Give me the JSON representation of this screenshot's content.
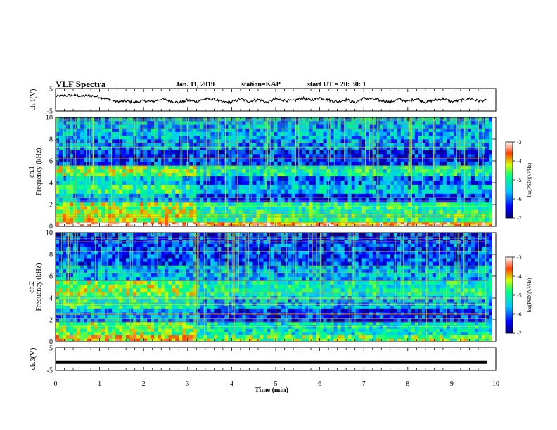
{
  "header": {
    "title": "VLF Spectra",
    "date": "Jan. 11, 2019",
    "station": "station=KAP",
    "start_ut": "start  UT =   20: 30: 1"
  },
  "chart_data": [
    {
      "type": "line",
      "panel": "ch1-waveform",
      "ylabel": "ch.1(V)",
      "ylim": [
        -5,
        5
      ],
      "yticks": [
        "5",
        "-5"
      ],
      "xlim": [
        0,
        10
      ],
      "color": "#000000",
      "note_values": "approximate trace amplitude sampled every ~0.2 min",
      "x": [
        0,
        0.2,
        0.4,
        0.6,
        0.8,
        1.0,
        1.2,
        1.4,
        1.6,
        1.8,
        2.0,
        2.2,
        2.4,
        2.6,
        2.8,
        3.0,
        3.2,
        3.4,
        3.6,
        3.8,
        4.0,
        4.2,
        4.4,
        4.6,
        4.8,
        5.0,
        5.2,
        5.4,
        5.6,
        5.8,
        6.0,
        6.2,
        6.4,
        6.6,
        6.8,
        7.0,
        7.2,
        7.4,
        7.6,
        7.8,
        8.0,
        8.2,
        8.4,
        8.6,
        8.8,
        9.0,
        9.2,
        9.4,
        9.6,
        9.8
      ],
      "y": [
        1.5,
        1.8,
        2.0,
        1.6,
        1.9,
        1.2,
        0.2,
        -0.8,
        -0.6,
        -1.2,
        -0.5,
        -0.9,
        0.3,
        -0.4,
        -1.3,
        -0.2,
        -0.9,
        0.4,
        0.2,
        -1.1,
        -1.0,
        0.3,
        -0.8,
        0.1,
        -1.2,
        0.4,
        -0.3,
        -0.5,
        0.7,
        -0.2,
        0.9,
        -0.1,
        -0.9,
        0.0,
        -1.2,
        0.6,
        0.3,
        -0.4,
        -1.0,
        0.2,
        -0.7,
        0.5,
        -1.1,
        -0.2,
        0.4,
        -0.9,
        -0.3,
        0.6,
        -0.5,
        -0.2
      ]
    },
    {
      "type": "heatmap",
      "panel": "ch1-spectrogram",
      "ylabel": "ch.1\nFrequency (kHz)",
      "ylabel_line1": "ch.1",
      "ylabel_line2": "Frequency (kHz)",
      "ylim": [
        0,
        10
      ],
      "yticks": [
        "0",
        "2",
        "4",
        "6",
        "8",
        "10"
      ],
      "xlim": [
        0,
        10
      ],
      "colorbar": {
        "label": "log(PSD)(V²/Hz)",
        "range": [
          -7,
          -3
        ],
        "ticks": [
          "-3",
          "-4",
          "-5",
          "-6",
          "-7"
        ]
      },
      "bands": [
        {
          "f0": 0.0,
          "f1": 0.4,
          "level": -3.6
        },
        {
          "f0": 0.4,
          "f1": 1.2,
          "level": -4.9
        },
        {
          "f0": 1.2,
          "f1": 2.2,
          "level": -5.0
        },
        {
          "f0": 2.2,
          "f1": 3.0,
          "level": -6.2
        },
        {
          "f0": 3.0,
          "f1": 3.8,
          "level": -5.5
        },
        {
          "f0": 3.8,
          "f1": 4.6,
          "level": -6.0
        },
        {
          "f0": 4.6,
          "f1": 5.6,
          "level": -5.1
        },
        {
          "f0": 5.6,
          "f1": 7.0,
          "level": -6.3
        },
        {
          "f0": 7.0,
          "f1": 8.0,
          "level": -5.8
        },
        {
          "f0": 8.0,
          "f1": 10.0,
          "level": -5.6
        }
      ]
    },
    {
      "type": "heatmap",
      "panel": "ch2-spectrogram",
      "ylabel_line1": "ch.2",
      "ylabel_line2": "Frequency (kHz)",
      "ylim": [
        0,
        10
      ],
      "yticks": [
        "0",
        "2",
        "4",
        "6",
        "8",
        "10"
      ],
      "xlim": [
        0,
        10
      ],
      "colorbar": {
        "label": "log(PSD)(V²/Hz)",
        "range": [
          -7,
          -3
        ],
        "ticks": [
          "-3",
          "-4",
          "-5",
          "-6",
          "-7"
        ]
      },
      "bands": [
        {
          "f0": 0.0,
          "f1": 0.6,
          "level": -4.6
        },
        {
          "f0": 0.6,
          "f1": 1.8,
          "level": -5.2
        },
        {
          "f0": 1.8,
          "f1": 3.0,
          "level": -6.3
        },
        {
          "f0": 3.0,
          "f1": 4.2,
          "level": -5.6
        },
        {
          "f0": 4.2,
          "f1": 5.6,
          "level": -5.1
        },
        {
          "f0": 5.6,
          "f1": 7.0,
          "level": -5.6
        },
        {
          "f0": 7.0,
          "f1": 10.0,
          "level": -6.2
        }
      ]
    },
    {
      "type": "line",
      "panel": "ch3-waveform",
      "ylabel": "ch.3(V)",
      "ylim": [
        -5,
        5
      ],
      "yticks": [
        "5",
        "-5"
      ],
      "xlim": [
        0,
        10
      ],
      "xlabel": "Time (min)",
      "xticks": [
        "0",
        "1",
        "2",
        "3",
        "4",
        "5",
        "6",
        "7",
        "8",
        "9",
        "10"
      ],
      "x": [
        0,
        9.8
      ],
      "y": [
        -1.5,
        -1.5
      ]
    }
  ]
}
